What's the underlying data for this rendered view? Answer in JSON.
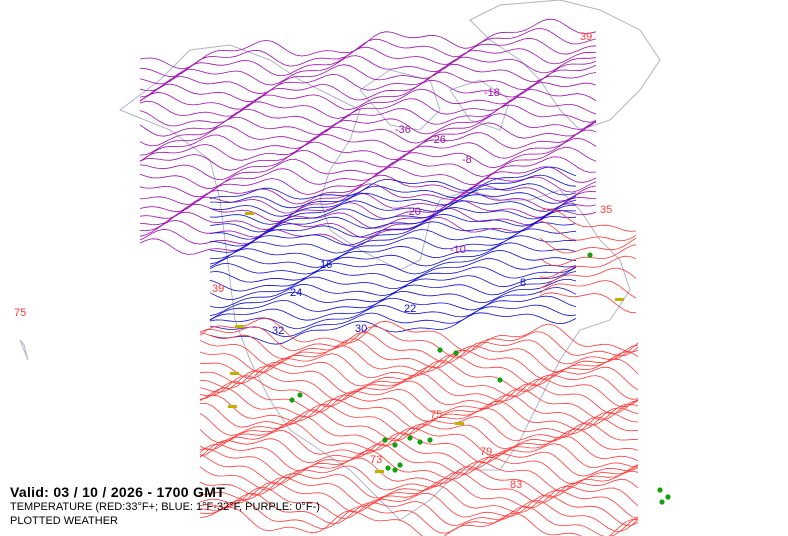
{
  "valid_label": "Valid: 03 / 10 / 2026  -  1700 GMT",
  "legend_temperature": "TEMPERATURE (RED:33°F+; BLUE: 1°F-32°F, PURPLE: 0°F-)",
  "legend_weather": "PLOTTED WEATHER",
  "colors": {
    "warm": "#ff3b3b",
    "cool": "#1010d0",
    "cold": "#a010b0",
    "coast": "#b0b4c8",
    "weather_green": "#10a010",
    "weather_yellow": "#c0b000"
  },
  "contour_labels": [
    {
      "text": "75",
      "band": "warm"
    },
    {
      "text": "39",
      "band": "warm"
    },
    {
      "text": "35",
      "band": "warm"
    },
    {
      "text": "73",
      "band": "warm"
    },
    {
      "text": "83",
      "band": "warm"
    },
    {
      "text": "79",
      "band": "warm"
    },
    {
      "text": "75",
      "band": "warm"
    },
    {
      "text": "39",
      "band": "warm"
    },
    {
      "text": "32",
      "band": "cool"
    },
    {
      "text": "24",
      "band": "cool"
    },
    {
      "text": "16",
      "band": "cool"
    },
    {
      "text": "30",
      "band": "cool"
    },
    {
      "text": "8",
      "band": "cool"
    },
    {
      "text": "22",
      "band": "cool"
    },
    {
      "text": "-18",
      "band": "cold"
    },
    {
      "text": "-36",
      "band": "cold"
    },
    {
      "text": "-26",
      "band": "cold"
    },
    {
      "text": "-20",
      "band": "cold"
    },
    {
      "text": "-8",
      "band": "cold"
    },
    {
      "text": "-10",
      "band": "cold"
    }
  ]
}
